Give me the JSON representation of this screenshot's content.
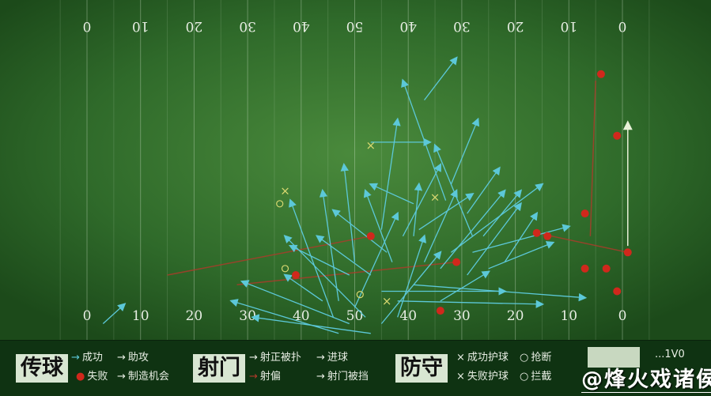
{
  "chart_data": {
    "type": "pass-map",
    "x_tick_labels_top": [
      "0",
      "10",
      "20",
      "30",
      "40",
      "50",
      "40",
      "30",
      "20",
      "10",
      "0"
    ],
    "x_tick_labels_bottom": [
      "0",
      "10",
      "20",
      "30",
      "40",
      "50",
      "40",
      "30",
      "20",
      "10",
      "0"
    ],
    "xlim": [
      0,
      100
    ],
    "ylim": [
      0,
      100
    ],
    "colors": {
      "pass_success": "#5cc8d8",
      "fail": "#d0281c",
      "shot_line": "#b03a2a",
      "ball": "#e8f0d8",
      "tackle": "#d8d870"
    },
    "passes_success": [
      [
        [
          63,
          26
        ],
        [
          69,
          13
        ]
      ],
      [
        [
          67,
          57
        ],
        [
          59,
          20
        ]
      ],
      [
        [
          68,
          52
        ],
        [
          73,
          32
        ]
      ],
      [
        [
          72,
          68
        ],
        [
          65,
          40
        ]
      ],
      [
        [
          55,
          66
        ],
        [
          58,
          32
        ]
      ],
      [
        [
          50,
          76
        ],
        [
          48,
          46
        ]
      ],
      [
        [
          47,
          88
        ],
        [
          44,
          54
        ]
      ],
      [
        [
          46,
          93
        ],
        [
          38,
          57
        ]
      ],
      [
        [
          52,
          93
        ],
        [
          37,
          68
        ]
      ],
      [
        [
          49,
          95
        ],
        [
          29,
          82
        ]
      ],
      [
        [
          47,
          98
        ],
        [
          27,
          88
        ]
      ],
      [
        [
          53,
          98
        ],
        [
          31,
          93
        ]
      ],
      [
        [
          57,
          76
        ],
        [
          52,
          54
        ]
      ],
      [
        [
          61,
          68
        ],
        [
          62,
          52
        ]
      ],
      [
        [
          63,
          76
        ],
        [
          69,
          54
        ]
      ],
      [
        [
          66,
          78
        ],
        [
          78,
          54
        ]
      ],
      [
        [
          68,
          73
        ],
        [
          85,
          52
        ]
      ],
      [
        [
          71,
          80
        ],
        [
          81,
          58
        ]
      ],
      [
        [
          72,
          73
        ],
        [
          90,
          65
        ]
      ],
      [
        [
          75,
          78
        ],
        [
          87,
          70
        ]
      ],
      [
        [
          55,
          85
        ],
        [
          78,
          85
        ]
      ],
      [
        [
          58,
          88
        ],
        [
          85,
          89
        ]
      ],
      [
        [
          61,
          83
        ],
        [
          93,
          87
        ]
      ],
      [
        [
          66,
          88
        ],
        [
          75,
          79
        ]
      ],
      [
        [
          53,
          80
        ],
        [
          43,
          68
        ]
      ],
      [
        [
          56,
          73
        ],
        [
          46,
          60
        ]
      ],
      [
        [
          59,
          68
        ],
        [
          66,
          46
        ]
      ],
      [
        [
          62,
          66
        ],
        [
          72,
          55
        ]
      ],
      [
        [
          58,
          93
        ],
        [
          63,
          68
        ]
      ],
      [
        [
          50,
          90
        ],
        [
          58,
          61
        ]
      ],
      [
        [
          55,
          95
        ],
        [
          66,
          73
        ]
      ],
      [
        [
          49,
          80
        ],
        [
          38,
          71
        ]
      ],
      [
        [
          44,
          88
        ],
        [
          37,
          80
        ]
      ],
      [
        [
          3,
          95
        ],
        [
          7,
          89
        ]
      ],
      [
        [
          61,
          58
        ],
        [
          53,
          52
        ]
      ],
      [
        [
          71,
          61
        ],
        [
          77,
          47
        ]
      ],
      [
        [
          74,
          68
        ],
        [
          81,
          54
        ]
      ],
      [
        [
          78,
          76
        ],
        [
          84,
          61
        ]
      ],
      [
        [
          53,
          39
        ],
        [
          64,
          39
        ]
      ]
    ],
    "fails": [
      [
        96,
        18
      ],
      [
        99,
        37
      ],
      [
        93,
        61
      ],
      [
        101,
        73
      ],
      [
        53,
        68
      ],
      [
        69,
        76
      ],
      [
        39,
        80
      ],
      [
        66,
        91
      ],
      [
        84,
        67
      ],
      [
        86,
        68
      ],
      [
        93,
        78
      ],
      [
        97,
        78
      ],
      [
        99,
        85
      ]
    ],
    "shots_off": [
      [
        [
          15,
          80
        ],
        [
          53,
          68
        ]
      ],
      [
        [
          28,
          83
        ],
        [
          69,
          76
        ]
      ],
      [
        [
          84,
          67
        ],
        [
          101,
          73
        ]
      ],
      [
        [
          95,
          20
        ],
        [
          94,
          68
        ]
      ]
    ],
    "shots_on": [
      [
        [
          101,
          71
        ],
        [
          101,
          33
        ]
      ]
    ],
    "tackles_x": [
      [
        53,
        40
      ],
      [
        37,
        54
      ],
      [
        65,
        56
      ],
      [
        56,
        88
      ]
    ],
    "tackles_o": [
      [
        36,
        58
      ],
      [
        37,
        78
      ],
      [
        51,
        86
      ]
    ]
  },
  "legend": {
    "pass": {
      "title": "传球",
      "success": "成功",
      "assist": "助攻",
      "fail": "失败",
      "chance": "制造机会"
    },
    "shot": {
      "title": "射门",
      "saved": "射正被扑",
      "goal": "进球",
      "off": "射偏",
      "blocked": "射门被挡"
    },
    "defense": {
      "title": "防守",
      "tackle_ok": "成功护球",
      "tackle_fail": "失败护球",
      "o1": "抢断",
      "o2": "拦截"
    },
    "extra": "...1V0",
    "watermark": "@烽火戏诸侯"
  }
}
